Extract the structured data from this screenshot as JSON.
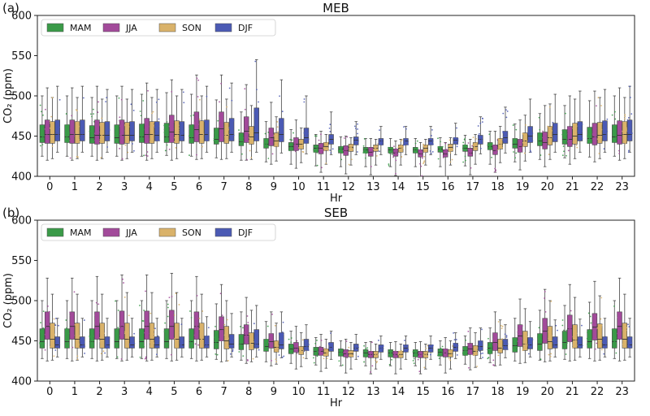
{
  "chart_data": [
    {
      "type": "box",
      "panel_label": "(a)",
      "title": "MEB",
      "xlabel": "Hr",
      "ylabel": "CO₂ (ppm)",
      "ylim": [
        400,
        600
      ],
      "yticks": [
        400,
        450,
        500,
        550,
        600
      ],
      "categories": [
        "0",
        "1",
        "2",
        "3",
        "4",
        "5",
        "6",
        "7",
        "8",
        "9",
        "10",
        "11",
        "12",
        "13",
        "14",
        "15",
        "16",
        "17",
        "18",
        "19",
        "20",
        "21",
        "22",
        "23"
      ],
      "legend_position": "top-left",
      "series": [
        {
          "name": "MAM",
          "color": "#3a9a48",
          "q1": [
            442,
            442,
            441,
            441,
            442,
            442,
            441,
            440,
            438,
            435,
            432,
            430,
            429,
            429,
            429,
            429,
            430,
            431,
            433,
            435,
            438,
            440,
            441,
            442
          ],
          "median": [
            449,
            449,
            448,
            448,
            449,
            449,
            448,
            446,
            443,
            440,
            437,
            435,
            434,
            433,
            433,
            433,
            434,
            435,
            437,
            440,
            444,
            446,
            447,
            449
          ],
          "q3": [
            464,
            464,
            463,
            464,
            465,
            466,
            464,
            460,
            454,
            447,
            442,
            439,
            437,
            436,
            436,
            436,
            437,
            439,
            442,
            447,
            454,
            458,
            461,
            464
          ],
          "whisker_low": [
            425,
            425,
            425,
            425,
            425,
            426,
            425,
            423,
            420,
            418,
            415,
            413,
            412,
            412,
            412,
            412,
            412,
            413,
            415,
            418,
            421,
            423,
            424,
            425
          ],
          "whisker_high": [
            500,
            500,
            498,
            500,
            502,
            504,
            502,
            495,
            480,
            468,
            458,
            452,
            449,
            447,
            447,
            447,
            448,
            451,
            456,
            465,
            478,
            488,
            494,
            500
          ]
        },
        {
          "name": "JJA",
          "color": "#a24a9a",
          "q1": [
            441,
            441,
            440,
            440,
            441,
            442,
            443,
            443,
            442,
            438,
            432,
            428,
            426,
            425,
            425,
            424,
            424,
            425,
            427,
            430,
            434,
            437,
            439,
            440
          ],
          "median": [
            452,
            452,
            451,
            451,
            452,
            455,
            458,
            459,
            456,
            448,
            440,
            435,
            432,
            430,
            429,
            428,
            428,
            429,
            432,
            437,
            442,
            446,
            449,
            451
          ],
          "q3": [
            470,
            470,
            470,
            470,
            472,
            476,
            480,
            480,
            474,
            460,
            448,
            441,
            438,
            436,
            434,
            433,
            433,
            435,
            439,
            446,
            455,
            462,
            466,
            469
          ],
          "whisker_low": [
            420,
            420,
            420,
            420,
            420,
            420,
            421,
            421,
            420,
            415,
            410,
            405,
            403,
            402,
            401,
            400,
            400,
            402,
            405,
            408,
            412,
            415,
            418,
            420
          ],
          "whisker_high": [
            510,
            510,
            512,
            512,
            516,
            520,
            526,
            526,
            514,
            492,
            470,
            456,
            450,
            447,
            444,
            442,
            442,
            446,
            456,
            470,
            488,
            500,
            506,
            510
          ]
        },
        {
          "name": "SON",
          "color": "#d9b26a",
          "q1": [
            441,
            441,
            441,
            441,
            441,
            441,
            441,
            441,
            440,
            437,
            434,
            432,
            431,
            431,
            430,
            430,
            431,
            432,
            434,
            437,
            439,
            440,
            441,
            441
          ],
          "median": [
            452,
            452,
            451,
            451,
            452,
            452,
            452,
            451,
            449,
            444,
            440,
            437,
            436,
            435,
            435,
            435,
            436,
            437,
            440,
            444,
            448,
            450,
            451,
            452
          ],
          "q3": [
            468,
            468,
            467,
            467,
            468,
            469,
            469,
            467,
            462,
            454,
            446,
            442,
            440,
            439,
            439,
            439,
            440,
            442,
            447,
            454,
            462,
            466,
            467,
            468
          ],
          "whisker_low": [
            422,
            422,
            422,
            422,
            422,
            422,
            422,
            422,
            421,
            419,
            417,
            415,
            414,
            414,
            414,
            414,
            414,
            415,
            417,
            419,
            421,
            422,
            422,
            422
          ],
          "whisker_high": [
            498,
            498,
            496,
            496,
            498,
            500,
            500,
            496,
            488,
            474,
            460,
            452,
            448,
            446,
            446,
            446,
            448,
            452,
            462,
            476,
            490,
            496,
            498,
            498
          ]
        },
        {
          "name": "DJF",
          "color": "#4b5ab4",
          "q1": [
            444,
            444,
            444,
            444,
            444,
            444,
            444,
            444,
            444,
            443,
            441,
            440,
            439,
            439,
            439,
            439,
            440,
            440,
            441,
            442,
            443,
            444,
            444,
            444
          ],
          "median": [
            452,
            452,
            451,
            451,
            451,
            451,
            452,
            452,
            454,
            452,
            448,
            446,
            445,
            444,
            444,
            444,
            445,
            446,
            448,
            450,
            452,
            452,
            452,
            452
          ],
          "q3": [
            470,
            470,
            468,
            468,
            468,
            468,
            470,
            472,
            485,
            472,
            460,
            452,
            449,
            447,
            447,
            447,
            448,
            451,
            456,
            462,
            466,
            468,
            469,
            470
          ],
          "whisker_low": [
            430,
            430,
            430,
            430,
            430,
            430,
            430,
            430,
            430,
            429,
            428,
            427,
            427,
            427,
            427,
            427,
            427,
            428,
            429,
            430,
            430,
            430,
            430,
            430
          ],
          "whisker_high": [
            512,
            512,
            508,
            508,
            508,
            508,
            512,
            516,
            545,
            520,
            500,
            480,
            468,
            462,
            462,
            462,
            466,
            474,
            486,
            496,
            502,
            506,
            508,
            512
          ]
        }
      ]
    },
    {
      "type": "box",
      "panel_label": "(b)",
      "title": "SEB",
      "xlabel": "Hr",
      "ylabel": "CO₂ (ppm)",
      "ylim": [
        400,
        600
      ],
      "yticks": [
        400,
        450,
        500,
        550,
        600
      ],
      "categories": [
        "0",
        "1",
        "2",
        "3",
        "4",
        "5",
        "6",
        "7",
        "8",
        "9",
        "10",
        "11",
        "12",
        "13",
        "14",
        "15",
        "16",
        "17",
        "18",
        "19",
        "20",
        "21",
        "22",
        "23"
      ],
      "legend_position": "top-left",
      "series": [
        {
          "name": "MAM",
          "color": "#3a9a48",
          "q1": [
            441,
            441,
            441,
            441,
            441,
            441,
            441,
            440,
            439,
            437,
            434,
            432,
            431,
            430,
            430,
            430,
            431,
            432,
            434,
            436,
            438,
            440,
            441,
            441
          ],
          "median": [
            449,
            449,
            449,
            449,
            449,
            449,
            449,
            448,
            446,
            443,
            440,
            437,
            436,
            435,
            435,
            435,
            436,
            438,
            441,
            444,
            446,
            448,
            449,
            449
          ],
          "q3": [
            465,
            465,
            465,
            465,
            465,
            465,
            465,
            463,
            458,
            452,
            446,
            442,
            440,
            439,
            439,
            439,
            440,
            443,
            448,
            454,
            459,
            462,
            464,
            465
          ],
          "whisker_low": [
            428,
            428,
            428,
            428,
            428,
            428,
            428,
            427,
            426,
            424,
            422,
            420,
            419,
            419,
            419,
            419,
            420,
            421,
            423,
            425,
            426,
            427,
            428,
            428
          ],
          "whisker_high": [
            500,
            500,
            500,
            500,
            500,
            500,
            500,
            496,
            486,
            474,
            462,
            454,
            450,
            448,
            448,
            448,
            450,
            456,
            466,
            478,
            488,
            494,
            498,
            500
          ]
        },
        {
          "name": "JJA",
          "color": "#a24a9a",
          "q1": [
            452,
            452,
            452,
            452,
            452,
            452,
            452,
            450,
            446,
            441,
            436,
            432,
            430,
            429,
            429,
            429,
            430,
            433,
            438,
            443,
            447,
            449,
            451,
            452
          ],
          "median": [
            468,
            468,
            468,
            468,
            468,
            468,
            468,
            464,
            457,
            449,
            441,
            437,
            434,
            433,
            433,
            433,
            435,
            440,
            448,
            456,
            462,
            465,
            467,
            468
          ],
          "q3": [
            486,
            486,
            486,
            487,
            487,
            488,
            486,
            480,
            470,
            459,
            448,
            442,
            439,
            437,
            437,
            437,
            440,
            447,
            460,
            470,
            478,
            482,
            484,
            486
          ],
          "whisker_low": [
            425,
            425,
            425,
            425,
            425,
            425,
            425,
            424,
            422,
            419,
            415,
            412,
            410,
            409,
            409,
            409,
            410,
            414,
            419,
            422,
            424,
            425,
            425,
            425
          ],
          "whisker_high": [
            528,
            528,
            530,
            532,
            532,
            534,
            530,
            520,
            504,
            486,
            468,
            458,
            452,
            449,
            449,
            449,
            454,
            466,
            486,
            502,
            514,
            520,
            524,
            528
          ]
        },
        {
          "name": "SON",
          "color": "#d9b26a",
          "q1": [
            441,
            441,
            441,
            441,
            441,
            441,
            441,
            440,
            439,
            436,
            433,
            431,
            430,
            429,
            429,
            429,
            430,
            432,
            435,
            438,
            440,
            441,
            441,
            441
          ],
          "median": [
            452,
            452,
            452,
            452,
            452,
            452,
            452,
            450,
            447,
            442,
            438,
            435,
            434,
            433,
            433,
            433,
            434,
            437,
            441,
            446,
            449,
            451,
            452,
            452
          ],
          "q3": [
            472,
            472,
            472,
            472,
            472,
            472,
            472,
            468,
            460,
            450,
            443,
            440,
            438,
            437,
            437,
            437,
            439,
            444,
            452,
            462,
            468,
            470,
            471,
            472
          ],
          "whisker_low": [
            426,
            426,
            426,
            426,
            426,
            426,
            426,
            425,
            424,
            421,
            418,
            416,
            415,
            415,
            415,
            415,
            415,
            417,
            420,
            423,
            425,
            426,
            426,
            426
          ],
          "whisker_high": [
            508,
            508,
            508,
            510,
            510,
            510,
            508,
            500,
            488,
            472,
            460,
            452,
            448,
            446,
            446,
            446,
            450,
            460,
            476,
            490,
            500,
            504,
            506,
            508
          ]
        },
        {
          "name": "DJF",
          "color": "#4b5ab4",
          "q1": [
            441,
            441,
            441,
            441,
            441,
            441,
            441,
            441,
            441,
            440,
            438,
            437,
            437,
            436,
            436,
            436,
            437,
            438,
            439,
            440,
            441,
            441,
            441,
            441
          ],
          "median": [
            445,
            445,
            445,
            445,
            445,
            445,
            445,
            446,
            446,
            445,
            443,
            442,
            441,
            441,
            441,
            441,
            442,
            443,
            444,
            445,
            445,
            445,
            445,
            445
          ],
          "q3": [
            455,
            455,
            455,
            455,
            455,
            455,
            456,
            458,
            464,
            460,
            452,
            448,
            446,
            445,
            445,
            445,
            447,
            450,
            452,
            454,
            455,
            455,
            455,
            455
          ],
          "whisker_low": [
            430,
            430,
            430,
            430,
            430,
            430,
            430,
            430,
            430,
            429,
            428,
            427,
            427,
            427,
            427,
            427,
            428,
            428,
            429,
            430,
            430,
            430,
            430,
            430
          ],
          "whisker_high": [
            478,
            478,
            478,
            478,
            478,
            478,
            480,
            484,
            494,
            486,
            470,
            462,
            458,
            456,
            456,
            456,
            460,
            466,
            470,
            474,
            476,
            477,
            478,
            478
          ]
        }
      ]
    }
  ]
}
